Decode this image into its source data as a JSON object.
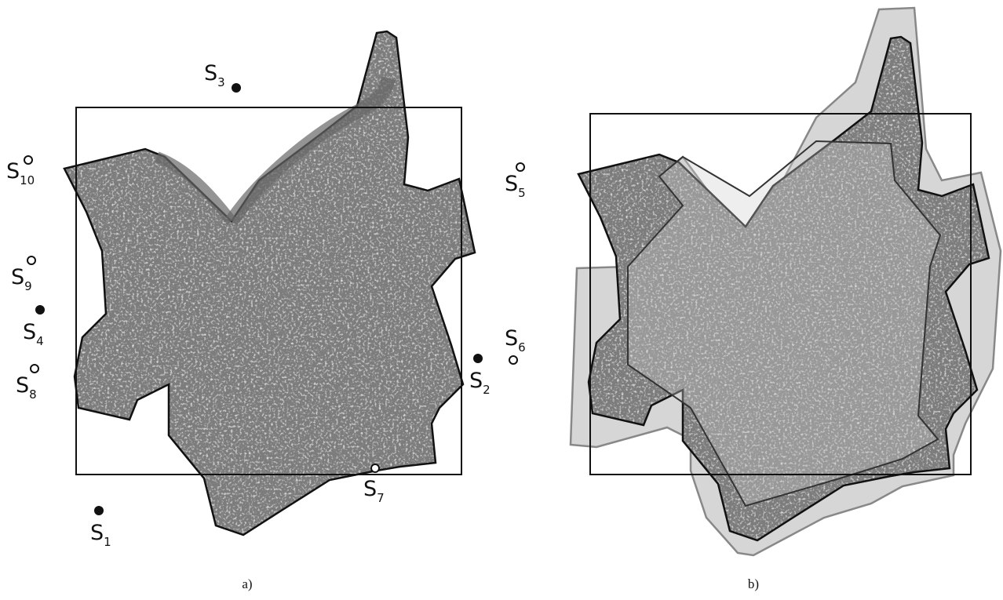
{
  "panels": [
    {
      "caption": "a)",
      "stations": [
        {
          "letter": "S",
          "index": "3"
        },
        {
          "letter": "S",
          "index": "10"
        },
        {
          "letter": "S",
          "index": "9"
        },
        {
          "letter": "S",
          "index": "4"
        },
        {
          "letter": "S",
          "index": "8"
        },
        {
          "letter": "S",
          "index": "1"
        },
        {
          "letter": "S",
          "index": "7"
        },
        {
          "letter": "S",
          "index": "2"
        },
        {
          "letter": "S",
          "index": "6"
        },
        {
          "letter": "S",
          "index": "5"
        }
      ]
    },
    {
      "caption": "b)"
    }
  ]
}
